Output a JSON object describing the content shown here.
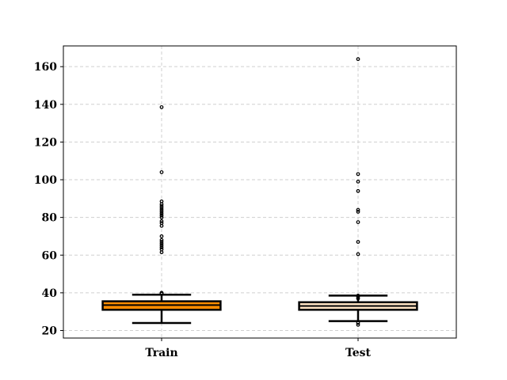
{
  "chart_data": {
    "type": "box",
    "title": "",
    "xlabel": "",
    "ylabel": "",
    "categories": [
      "Train",
      "Test"
    ],
    "ylim": [
      16,
      171
    ],
    "yticks": [
      20,
      40,
      60,
      80,
      100,
      120,
      140,
      160
    ],
    "grid": true,
    "boxes": [
      {
        "category": "Train",
        "whisker_low": 24,
        "q1": 31,
        "median": 33.5,
        "q3": 35.5,
        "whisker_high": 39,
        "fill": "#ff8c00",
        "outliers": [
          39.5,
          40,
          39.8,
          61.5,
          63,
          64,
          65,
          66,
          67,
          68,
          70,
          75.5,
          77,
          78,
          80,
          81,
          82,
          83,
          84,
          85,
          86,
          87,
          88.5,
          104,
          138.5
        ]
      },
      {
        "category": "Test",
        "whisker_low": 25,
        "q1": 31,
        "median": 33,
        "q3": 35,
        "whisker_high": 38.5,
        "fill": "#ffe4c4",
        "outliers": [
          23,
          24,
          37,
          38,
          38.5,
          60.5,
          67,
          77.5,
          83,
          84,
          94,
          99,
          103,
          164
        ]
      }
    ]
  }
}
